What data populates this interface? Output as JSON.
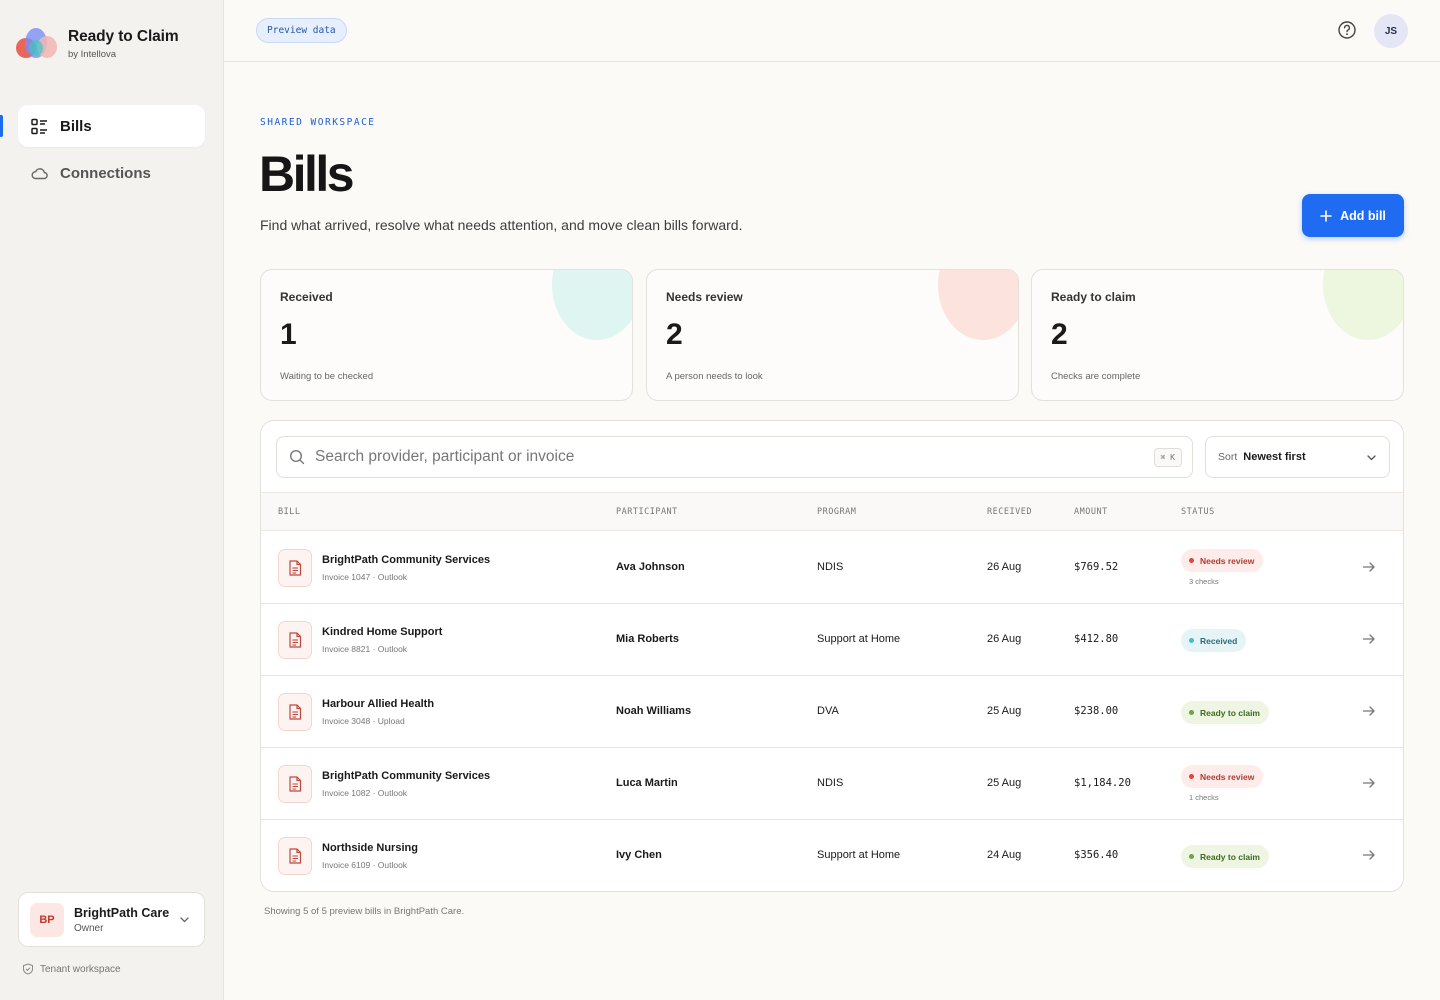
{
  "app": {
    "name": "Ready to Claim",
    "by": "by Intellova"
  },
  "nav": {
    "items": [
      {
        "label": "Bills",
        "icon": "list-icon",
        "active": true
      },
      {
        "label": "Connections",
        "icon": "cloud-icon",
        "active": false
      }
    ]
  },
  "org": {
    "initials": "BP",
    "name": "BrightPath Care",
    "role": "Owner"
  },
  "tenant_label": "Tenant workspace",
  "topbar": {
    "preview_label": "Preview data",
    "avatar_initials": "JS"
  },
  "page": {
    "eyebrow": "SHARED WORKSPACE",
    "title": "Bills",
    "subtitle": "Find what arrived, resolve what needs attention, and move clean bills forward.",
    "add_button": "Add bill"
  },
  "stats": [
    {
      "label": "Received",
      "value": "1",
      "hint": "Waiting to be checked",
      "color": "#def5f2"
    },
    {
      "label": "Needs review",
      "value": "2",
      "hint": "A person needs to look",
      "color": "#fde3dd"
    },
    {
      "label": "Ready to claim",
      "value": "2",
      "hint": "Checks are complete",
      "color": "#edf6df"
    }
  ],
  "search": {
    "placeholder": "Search provider, participant or invoice",
    "shortcut": "⌘ K"
  },
  "sort": {
    "label": "Sort",
    "value": "Newest first"
  },
  "table": {
    "headers": [
      "BILL",
      "PARTICIPANT",
      "PROGRAM",
      "RECEIVED",
      "AMOUNT",
      "STATUS"
    ],
    "rows": [
      {
        "provider": "BrightPath Community Services",
        "invoice": "Invoice 1047 · Outlook",
        "participant": "Ava Johnson",
        "program": "NDIS",
        "received": "26 Aug",
        "amount": "$769.52",
        "status": "Needs review",
        "status_kind": "review",
        "checks": "3 checks"
      },
      {
        "provider": "Kindred Home Support",
        "invoice": "Invoice 8821 · Outlook",
        "participant": "Mia Roberts",
        "program": "Support at Home",
        "received": "26 Aug",
        "amount": "$412.80",
        "status": "Received",
        "status_kind": "received",
        "checks": ""
      },
      {
        "provider": "Harbour Allied Health",
        "invoice": "Invoice 3048 · Upload",
        "participant": "Noah Williams",
        "program": "DVA",
        "received": "25 Aug",
        "amount": "$238.00",
        "status": "Ready to claim",
        "status_kind": "ready",
        "checks": ""
      },
      {
        "provider": "BrightPath Community Services",
        "invoice": "Invoice 1082 · Outlook",
        "participant": "Luca Martin",
        "program": "NDIS",
        "received": "25 Aug",
        "amount": "$1,184.20",
        "status": "Needs review",
        "status_kind": "review",
        "checks": "1 checks"
      },
      {
        "provider": "Northside Nursing",
        "invoice": "Invoice 6109 · Outlook",
        "participant": "Ivy Chen",
        "program": "Support at Home",
        "received": "24 Aug",
        "amount": "$356.40",
        "status": "Ready to claim",
        "status_kind": "ready",
        "checks": ""
      }
    ]
  },
  "footnote": "Showing 5 of 5 preview bills in BrightPath Care.",
  "colors": {
    "accent": "#1f6bf2",
    "review_bg": "#fdecea",
    "review_dot": "#e0473a",
    "review_text": "#b23a2f",
    "received_bg": "#e6f4f7",
    "received_dot": "#3cc0c9",
    "received_text": "#2a6c77",
    "ready_bg": "#eef5e2",
    "ready_dot": "#6aa54a",
    "ready_text": "#3e6a22"
  }
}
